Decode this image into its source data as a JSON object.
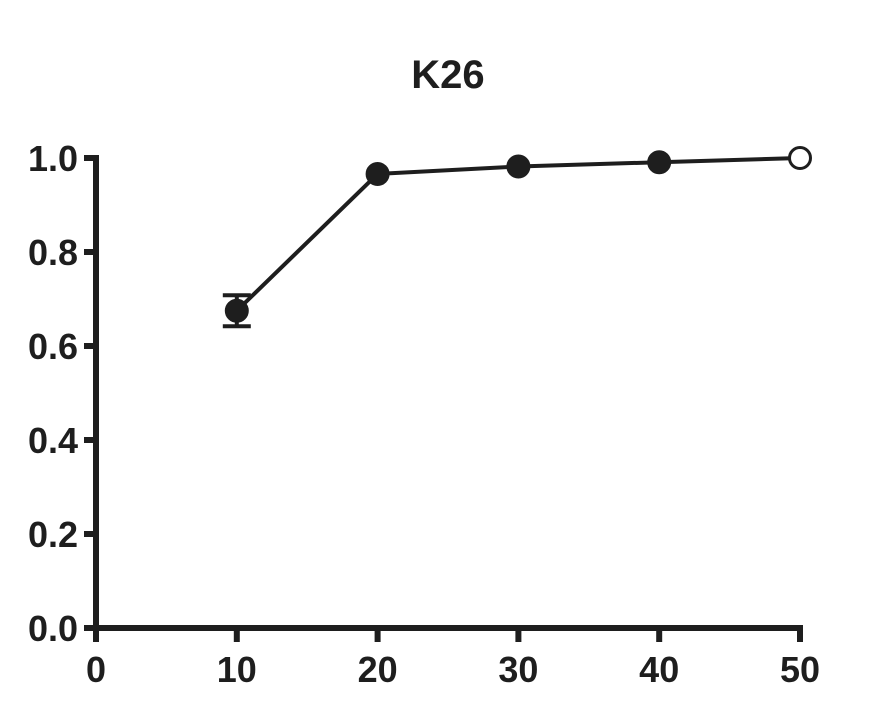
{
  "chart_data": {
    "type": "line",
    "title": "K26",
    "xlabel": "",
    "ylabel": "",
    "xlim": [
      0,
      50
    ],
    "ylim": [
      0,
      1.0
    ],
    "x_ticks": [
      0,
      10,
      20,
      30,
      40,
      50
    ],
    "x_tick_labels": [
      "0",
      "10",
      "20",
      "30",
      "40",
      "50"
    ],
    "y_ticks": [
      0,
      0.2,
      0.4,
      0.6,
      0.8,
      1.0
    ],
    "y_tick_labels": [
      "0.0",
      "0.2",
      "0.4",
      "0.6",
      "0.8",
      "1.0"
    ],
    "grid": false,
    "series": [
      {
        "x": [
          10,
          20,
          30,
          40,
          50
        ],
        "y": [
          0.675,
          0.966,
          0.982,
          0.991,
          1.0
        ],
        "error": [
          0.033,
          0,
          0,
          0,
          0
        ],
        "marker_fill": [
          "filled",
          "filled",
          "filled",
          "filled",
          "open"
        ]
      }
    ],
    "colors": {
      "line": "#1e1e1e",
      "marker": "#1e1e1e",
      "open_marker_fill": "#ffffff",
      "axis": "#1e1e1e"
    }
  }
}
